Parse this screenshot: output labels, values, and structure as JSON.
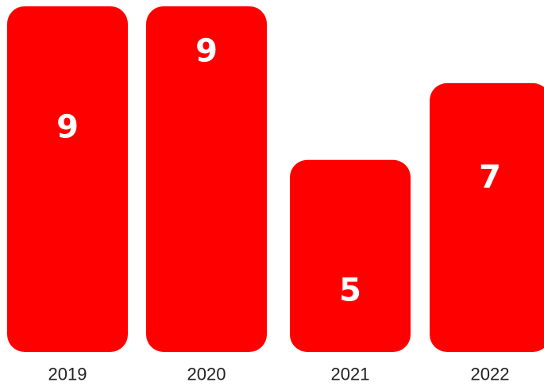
{
  "chart_data": {
    "type": "bar",
    "categories": [
      "2019",
      "2020",
      "2021",
      "2022"
    ],
    "values": [
      9,
      9,
      5,
      7
    ],
    "title": "",
    "xlabel": "",
    "ylabel": "",
    "ylim": [
      0,
      9
    ],
    "grid": false,
    "legend": "none",
    "bar_color": "#ff0000",
    "value_label_color": "#ffffff",
    "value_label_positions": [
      "middle",
      "upper",
      "lower",
      "middle"
    ]
  }
}
